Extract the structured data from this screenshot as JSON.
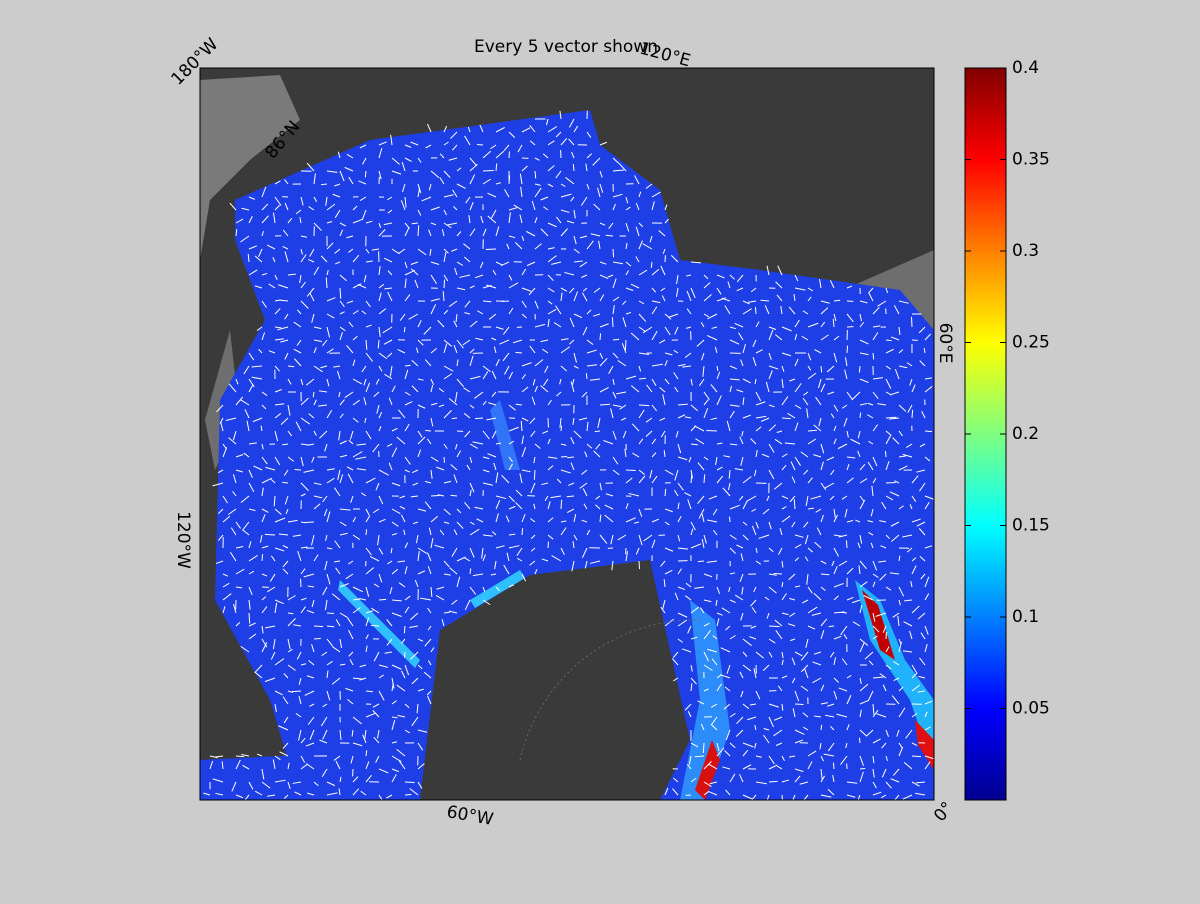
{
  "title": "Every 5 vector shown",
  "map": {
    "labels": [
      "180°W",
      "120°E",
      "60°E",
      "0°",
      "60°W",
      "120°W",
      "86°N"
    ]
  },
  "colorbar": {
    "colormap": "jet",
    "lim": [
      0,
      0.4
    ],
    "ticks": [
      0.05,
      0.1,
      0.15,
      0.2,
      0.25,
      0.3,
      0.35,
      0.4
    ]
  }
}
